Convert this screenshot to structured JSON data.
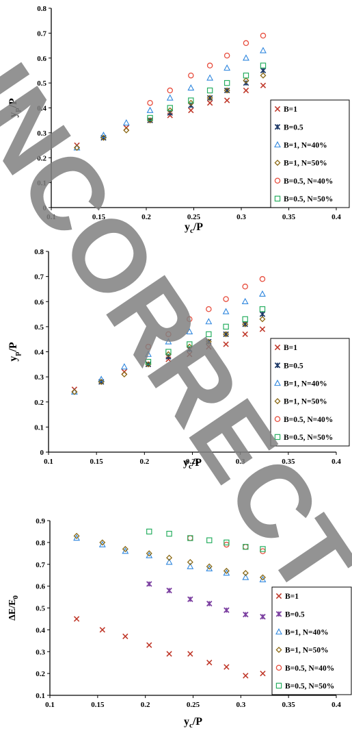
{
  "watermark": {
    "text": "INCORRECT",
    "color": "#808080"
  },
  "marker_styles": {
    "B=1": {
      "shape": "x",
      "color": "#c0392b"
    },
    "B=0.5": {
      "shape": "star",
      "color": "#1f3a68"
    },
    "B=0.5 (panel 3)": {
      "shape": "star",
      "color": "#7b3fa0"
    },
    "B=1, N=40%": {
      "shape": "triangle",
      "color": "#2e86de"
    },
    "B=1, N=50%": {
      "shape": "diamond",
      "color": "#8b6914"
    },
    "B=0.5, N=40%": {
      "shape": "circle",
      "color": "#e74c3c"
    },
    "B=0.5, N=50%": {
      "shape": "square",
      "color": "#27ae60"
    }
  },
  "chart_data": [
    {
      "type": "scatter",
      "ylabel": "y",
      "ylabel_sub": "p",
      "ylabel_tail": "/P",
      "xlabel": "y",
      "xlabel_sub": "c",
      "xlabel_tail": "/P",
      "xlim": [
        0.1,
        0.4
      ],
      "ylim": [
        0,
        0.8
      ],
      "x_ticks": [
        "0.1",
        "0.15",
        "0.2",
        "0.25",
        "0.3",
        "0.35",
        "0.4"
      ],
      "y_ticks": [
        "0",
        "0.1",
        "0.2",
        "0.3",
        "0.4",
        "0.5",
        "0.6",
        "0.7",
        "0.8"
      ],
      "grid": false,
      "legend_position": "right",
      "series": [
        {
          "name": "B=1",
          "x": [
            0.127,
            0.179,
            0.204,
            0.225,
            0.247,
            0.267,
            0.285,
            0.305,
            0.323
          ],
          "y": [
            0.25,
            0.32,
            0.35,
            0.37,
            0.39,
            0.42,
            0.43,
            0.47,
            0.49
          ]
        },
        {
          "name": "B=0.5",
          "x": [
            0.155,
            0.204,
            0.225,
            0.247,
            0.267,
            0.285,
            0.305,
            0.323
          ],
          "y": [
            0.28,
            0.35,
            0.38,
            0.41,
            0.44,
            0.47,
            0.5,
            0.55
          ]
        },
        {
          "name": "B=1, N=40%",
          "x": [
            0.127,
            0.155,
            0.179,
            0.204,
            0.225,
            0.247,
            0.267,
            0.285,
            0.305,
            0.323
          ],
          "y": [
            0.24,
            0.29,
            0.34,
            0.39,
            0.44,
            0.48,
            0.52,
            0.56,
            0.6,
            0.63
          ]
        },
        {
          "name": "B=1, N=50%",
          "x": [
            0.127,
            0.155,
            0.179,
            0.204,
            0.225,
            0.247,
            0.267,
            0.285,
            0.305,
            0.323
          ],
          "y": [
            0.24,
            0.28,
            0.31,
            0.35,
            0.39,
            0.42,
            0.44,
            0.47,
            0.51,
            0.53
          ]
        },
        {
          "name": "B=0.5, N=40%",
          "x": [
            0.204,
            0.225,
            0.247,
            0.267,
            0.285,
            0.305,
            0.323
          ],
          "y": [
            0.42,
            0.47,
            0.53,
            0.57,
            0.61,
            0.66,
            0.69
          ]
        },
        {
          "name": "B=0.5, N=50%",
          "x": [
            0.204,
            0.225,
            0.247,
            0.267,
            0.285,
            0.305,
            0.323
          ],
          "y": [
            0.36,
            0.4,
            0.43,
            0.47,
            0.5,
            0.53,
            0.57
          ]
        }
      ]
    },
    {
      "type": "scatter",
      "ylabel": "y",
      "ylabel_sub": "p",
      "ylabel_tail": "/P",
      "xlabel": "y",
      "xlabel_sub": "c",
      "xlabel_tail": "/P",
      "xlim": [
        0.1,
        0.4
      ],
      "ylim": [
        0,
        0.8
      ],
      "x_ticks": [
        "0.1",
        "0.15",
        "0.2",
        "0.25",
        "0.3",
        "0.35",
        "0.4"
      ],
      "y_ticks": [
        "0",
        "0.1",
        "0.2",
        "0.3",
        "0.4",
        "0.5",
        "0.6",
        "0.7",
        "0.8"
      ],
      "grid": false,
      "legend_position": "right",
      "series": [
        {
          "name": "B=1",
          "x": [
            0.127,
            0.179,
            0.204,
            0.225,
            0.247,
            0.267,
            0.285,
            0.305,
            0.323
          ],
          "y": [
            0.25,
            0.32,
            0.35,
            0.37,
            0.39,
            0.42,
            0.43,
            0.47,
            0.49
          ]
        },
        {
          "name": "B=0.5",
          "x": [
            0.155,
            0.204,
            0.225,
            0.247,
            0.267,
            0.285,
            0.305,
            0.323
          ],
          "y": [
            0.28,
            0.35,
            0.38,
            0.41,
            0.44,
            0.47,
            0.51,
            0.55
          ]
        },
        {
          "name": "B=1, N=40%",
          "x": [
            0.127,
            0.155,
            0.179,
            0.204,
            0.225,
            0.247,
            0.267,
            0.285,
            0.305,
            0.323
          ],
          "y": [
            0.24,
            0.29,
            0.34,
            0.39,
            0.44,
            0.48,
            0.52,
            0.56,
            0.6,
            0.63
          ]
        },
        {
          "name": "B=1, N=50%",
          "x": [
            0.127,
            0.155,
            0.179,
            0.204,
            0.225,
            0.247,
            0.267,
            0.285,
            0.305,
            0.323
          ],
          "y": [
            0.24,
            0.28,
            0.31,
            0.35,
            0.39,
            0.42,
            0.44,
            0.47,
            0.51,
            0.53
          ]
        },
        {
          "name": "B=0.5, N=40%",
          "x": [
            0.204,
            0.225,
            0.247,
            0.267,
            0.285,
            0.305,
            0.323
          ],
          "y": [
            0.42,
            0.47,
            0.53,
            0.57,
            0.61,
            0.66,
            0.69
          ]
        },
        {
          "name": "B=0.5, N=50%",
          "x": [
            0.204,
            0.225,
            0.247,
            0.267,
            0.285,
            0.305,
            0.323
          ],
          "y": [
            0.36,
            0.4,
            0.43,
            0.47,
            0.5,
            0.53,
            0.57
          ]
        }
      ]
    },
    {
      "type": "scatter",
      "ylabel": "ΔE/E",
      "ylabel_sub": "0",
      "ylabel_tail": "",
      "xlabel": "y",
      "xlabel_sub": "c",
      "xlabel_tail": "/P",
      "xlim": [
        0.1,
        0.4
      ],
      "ylim": [
        0.1,
        0.9
      ],
      "x_ticks": [
        "0.1",
        "0.15",
        "0.2",
        "0.25",
        "0.3",
        "0.35",
        "0.4"
      ],
      "y_ticks": [
        "0.1",
        "0.2",
        "0.3",
        "0.4",
        "0.5",
        "0.6",
        "0.7",
        "0.8",
        "0.9"
      ],
      "grid": false,
      "legend_position": "right",
      "series": [
        {
          "name": "B=1",
          "x": [
            0.128,
            0.155,
            0.179,
            0.204,
            0.225,
            0.247,
            0.267,
            0.285,
            0.305,
            0.323
          ],
          "y": [
            0.45,
            0.4,
            0.37,
            0.33,
            0.29,
            0.29,
            0.25,
            0.23,
            0.19,
            0.2
          ]
        },
        {
          "name": "B=0.5",
          "x": [
            0.204,
            0.225,
            0.247,
            0.267,
            0.285,
            0.305,
            0.323
          ],
          "y": [
            0.61,
            0.58,
            0.54,
            0.52,
            0.49,
            0.47,
            0.46
          ]
        },
        {
          "name": "B=1, N=40%",
          "x": [
            0.128,
            0.155,
            0.179,
            0.204,
            0.225,
            0.247,
            0.267,
            0.285,
            0.305,
            0.323
          ],
          "y": [
            0.82,
            0.79,
            0.76,
            0.74,
            0.71,
            0.69,
            0.68,
            0.66,
            0.64,
            0.63
          ]
        },
        {
          "name": "B=1, N=50%",
          "x": [
            0.128,
            0.155,
            0.179,
            0.204,
            0.225,
            0.247,
            0.267,
            0.285,
            0.305,
            0.323
          ],
          "y": [
            0.83,
            0.8,
            0.77,
            0.75,
            0.73,
            0.71,
            0.69,
            0.67,
            0.66,
            0.64
          ]
        },
        {
          "name": "B=0.5, N=40%",
          "x": [
            0.247,
            0.285,
            0.305,
            0.323
          ],
          "y": [
            0.82,
            0.79,
            0.78,
            0.76
          ]
        },
        {
          "name": "B=0.5, N=50%",
          "x": [
            0.204,
            0.225,
            0.247,
            0.267,
            0.285,
            0.305,
            0.323
          ],
          "y": [
            0.85,
            0.84,
            0.82,
            0.81,
            0.8,
            0.78,
            0.77
          ]
        }
      ]
    }
  ]
}
